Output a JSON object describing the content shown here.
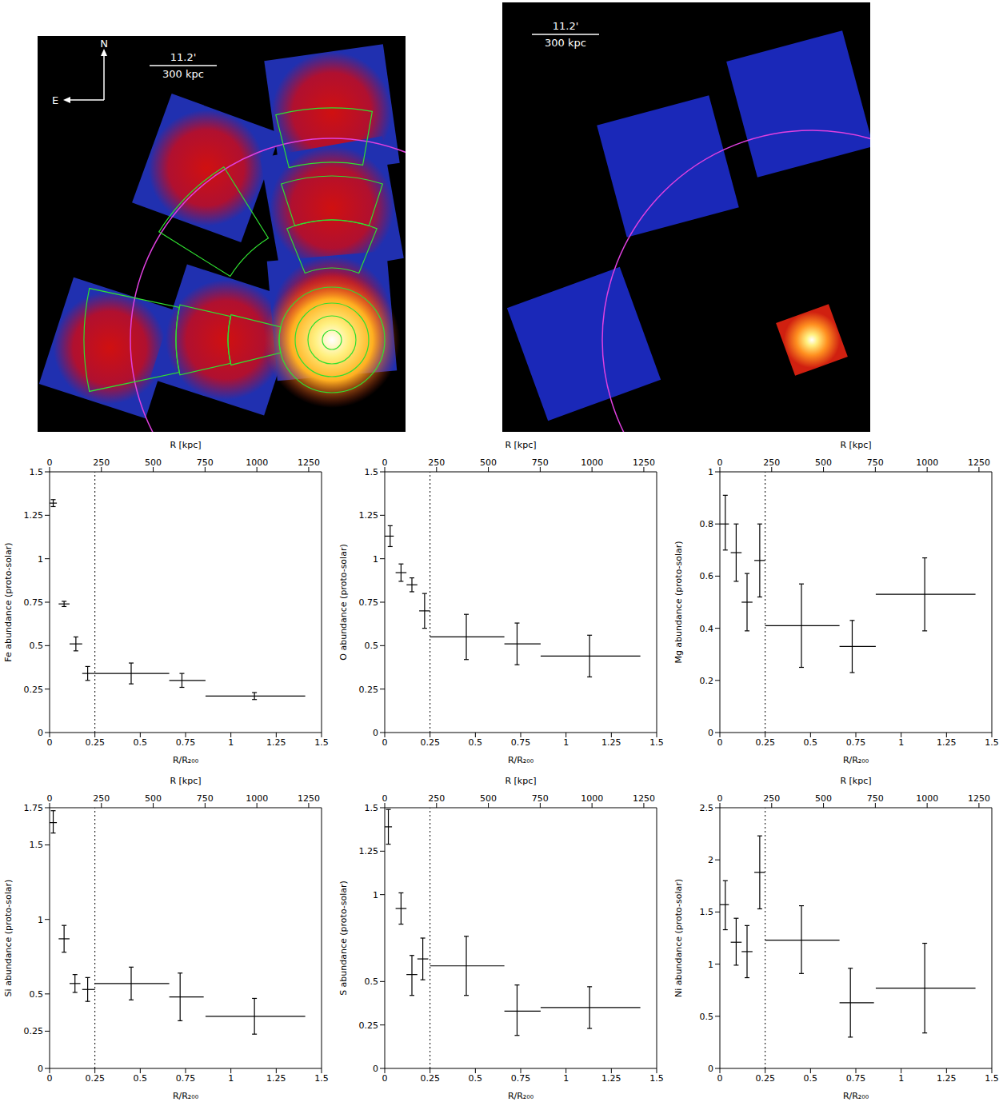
{
  "images": [
    {
      "scale_angle": "11.2'",
      "scale_length": "300 kpc",
      "compass": [
        "N",
        "E"
      ]
    },
    {
      "scale_angle": "11.2'",
      "scale_length": "300 kpc"
    }
  ],
  "chart_data": [
    {
      "type": "scatter",
      "y_label": "Fe abundance (proto-solar)",
      "x_label": "R/R₂₀₀",
      "x2_label": "R [kpc]",
      "xlim": [
        0,
        1.5
      ],
      "xticks": [
        0,
        0.25,
        0.5,
        0.75,
        1,
        1.25,
        1.5
      ],
      "x2lim": [
        0,
        1312
      ],
      "x2ticks": [
        0,
        250,
        500,
        750,
        1000,
        1250
      ],
      "ylim": [
        0,
        1.5
      ],
      "yticks": [
        0,
        0.25,
        0.5,
        0.75,
        1,
        1.25,
        1.5
      ],
      "reference_line_x": 0.25,
      "color": "#000000",
      "marker": "none",
      "x": [
        0.02,
        0.08,
        0.145,
        0.21,
        0.45,
        0.73,
        1.13
      ],
      "x_err": [
        [
          0.02,
          0.02
        ],
        [
          0.03,
          0.03
        ],
        [
          0.035,
          0.035
        ],
        [
          0.03,
          0.04
        ],
        [
          0.2,
          0.21
        ],
        [
          0.07,
          0.13
        ],
        [
          0.27,
          0.28
        ]
      ],
      "values": [
        1.32,
        0.74,
        0.51,
        0.34,
        0.34,
        0.3,
        0.21
      ],
      "y_err": [
        [
          0.02,
          0.02
        ],
        [
          0.015,
          0.015
        ],
        [
          0.04,
          0.04
        ],
        [
          0.04,
          0.04
        ],
        [
          0.06,
          0.06
        ],
        [
          0.04,
          0.04
        ],
        [
          0.02,
          0.02
        ]
      ]
    },
    {
      "type": "scatter",
      "y_label": "O abundance (proto-solar)",
      "x_label": "R/R₂₀₀",
      "x2_label": "R [kpc]",
      "xlim": [
        0,
        1.5
      ],
      "xticks": [
        0,
        0.25,
        0.5,
        0.75,
        1,
        1.25,
        1.5
      ],
      "x2lim": [
        0,
        1312
      ],
      "x2ticks": [
        0,
        250,
        500,
        750,
        1000,
        1250
      ],
      "ylim": [
        0,
        1.5
      ],
      "yticks": [
        0,
        0.25,
        0.5,
        0.75,
        1,
        1.25,
        1.5
      ],
      "reference_line_x": 0.25,
      "color": "#000000",
      "marker": "none",
      "x": [
        0.03,
        0.09,
        0.15,
        0.22,
        0.45,
        0.73,
        1.13
      ],
      "x_err": [
        [
          0.03,
          0.02
        ],
        [
          0.03,
          0.03
        ],
        [
          0.03,
          0.03
        ],
        [
          0.03,
          0.03
        ],
        [
          0.2,
          0.21
        ],
        [
          0.07,
          0.13
        ],
        [
          0.27,
          0.28
        ]
      ],
      "values": [
        1.13,
        0.92,
        0.85,
        0.7,
        0.55,
        0.51,
        0.44
      ],
      "y_err": [
        [
          0.06,
          0.06
        ],
        [
          0.05,
          0.05
        ],
        [
          0.04,
          0.04
        ],
        [
          0.1,
          0.1
        ],
        [
          0.13,
          0.13
        ],
        [
          0.12,
          0.12
        ],
        [
          0.12,
          0.12
        ]
      ]
    },
    {
      "type": "scatter",
      "y_label": "Mg abundance (proto-solar)",
      "x_label": "R/R₂₀₀",
      "x2_label": "R [kpc]",
      "xlim": [
        0,
        1.5
      ],
      "xticks": [
        0,
        0.25,
        0.5,
        0.75,
        1,
        1.25,
        1.5
      ],
      "x2lim": [
        0,
        1312
      ],
      "x2ticks": [
        0,
        250,
        500,
        750,
        1000,
        1250
      ],
      "ylim": [
        0,
        1
      ],
      "yticks": [
        0,
        0.2,
        0.4,
        0.6,
        0.8,
        1
      ],
      "reference_line_x": 0.25,
      "color": "#000000",
      "marker": "none",
      "x": [
        0.03,
        0.09,
        0.15,
        0.22,
        0.45,
        0.73,
        1.13
      ],
      "x_err": [
        [
          0.03,
          0.02
        ],
        [
          0.03,
          0.03
        ],
        [
          0.03,
          0.03
        ],
        [
          0.03,
          0.03
        ],
        [
          0.2,
          0.21
        ],
        [
          0.07,
          0.13
        ],
        [
          0.27,
          0.28
        ]
      ],
      "values": [
        0.8,
        0.69,
        0.5,
        0.66,
        0.41,
        0.33,
        0.53
      ],
      "y_err": [
        [
          0.1,
          0.11
        ],
        [
          0.11,
          0.11
        ],
        [
          0.11,
          0.11
        ],
        [
          0.14,
          0.14
        ],
        [
          0.16,
          0.16
        ],
        [
          0.1,
          0.1
        ],
        [
          0.14,
          0.14
        ]
      ]
    },
    {
      "type": "scatter",
      "y_label": "Si abundance (proto-solar)",
      "x_label": "R/R₂₀₀",
      "x2_label": "R [kpc]",
      "xlim": [
        0,
        1.5
      ],
      "xticks": [
        0,
        0.25,
        0.5,
        0.75,
        1,
        1.25,
        1.5
      ],
      "x2lim": [
        0,
        1312
      ],
      "x2ticks": [
        0,
        250,
        500,
        750,
        1000,
        1250
      ],
      "ylim": [
        0,
        1.75
      ],
      "yticks": [
        0,
        0.25,
        0.5,
        1,
        1.5,
        1.75
      ],
      "reference_line_x": 0.25,
      "color": "#000000",
      "marker": "none",
      "x": [
        0.02,
        0.08,
        0.14,
        0.21,
        0.45,
        0.72,
        1.13
      ],
      "x_err": [
        [
          0.02,
          0.02
        ],
        [
          0.03,
          0.03
        ],
        [
          0.03,
          0.03
        ],
        [
          0.03,
          0.04
        ],
        [
          0.2,
          0.21
        ],
        [
          0.06,
          0.13
        ],
        [
          0.27,
          0.28
        ]
      ],
      "values": [
        1.65,
        0.87,
        0.57,
        0.53,
        0.57,
        0.48,
        0.35
      ],
      "y_err": [
        [
          0.07,
          0.08
        ],
        [
          0.09,
          0.09
        ],
        [
          0.06,
          0.06
        ],
        [
          0.08,
          0.08
        ],
        [
          0.11,
          0.11
        ],
        [
          0.16,
          0.16
        ],
        [
          0.12,
          0.12
        ]
      ]
    },
    {
      "type": "scatter",
      "y_label": "S abundance (proto-solar)",
      "x_label": "R/R₂₀₀",
      "x2_label": "R [kpc]",
      "xlim": [
        0,
        1.5
      ],
      "xticks": [
        0,
        0.25,
        0.5,
        0.75,
        1,
        1.25,
        1.5
      ],
      "x2lim": [
        0,
        1312
      ],
      "x2ticks": [
        0,
        250,
        500,
        750,
        1000,
        1250
      ],
      "ylim": [
        0,
        1.5
      ],
      "yticks": [
        0,
        0.25,
        0.5,
        1,
        1.25,
        1.5
      ],
      "reference_line_x": 0.25,
      "color": "#000000",
      "marker": "none",
      "x": [
        0.02,
        0.09,
        0.15,
        0.21,
        0.45,
        0.73,
        1.13
      ],
      "x_err": [
        [
          0.02,
          0.02
        ],
        [
          0.03,
          0.03
        ],
        [
          0.03,
          0.03
        ],
        [
          0.03,
          0.03
        ],
        [
          0.2,
          0.21
        ],
        [
          0.07,
          0.13
        ],
        [
          0.27,
          0.28
        ]
      ],
      "values": [
        1.39,
        0.92,
        0.54,
        0.63,
        0.59,
        0.33,
        0.35
      ],
      "y_err": [
        [
          0.1,
          0.1
        ],
        [
          0.09,
          0.09
        ],
        [
          0.12,
          0.11
        ],
        [
          0.12,
          0.12
        ],
        [
          0.17,
          0.17
        ],
        [
          0.14,
          0.15
        ],
        [
          0.12,
          0.12
        ]
      ]
    },
    {
      "type": "scatter",
      "y_label": "Ni abundance (proto-solar)",
      "x_label": "R/R₂₀₀",
      "x2_label": "R [kpc]",
      "xlim": [
        0,
        1.5
      ],
      "xticks": [
        0,
        0.25,
        0.5,
        0.75,
        1,
        1.25,
        1.5
      ],
      "x2lim": [
        0,
        1312
      ],
      "x2ticks": [
        0,
        250,
        500,
        750,
        1000,
        1250
      ],
      "ylim": [
        0,
        2.5
      ],
      "yticks": [
        0,
        0.5,
        1,
        1.5,
        2,
        2.5
      ],
      "reference_line_x": 0.25,
      "color": "#000000",
      "marker": "none",
      "x": [
        0.03,
        0.09,
        0.15,
        0.22,
        0.45,
        0.72,
        1.13
      ],
      "x_err": [
        [
          0.03,
          0.02
        ],
        [
          0.03,
          0.03
        ],
        [
          0.03,
          0.03
        ],
        [
          0.03,
          0.03
        ],
        [
          0.2,
          0.21
        ],
        [
          0.06,
          0.13
        ],
        [
          0.27,
          0.28
        ]
      ],
      "values": [
        1.57,
        1.21,
        1.12,
        1.88,
        1.23,
        0.63,
        0.77
      ],
      "y_err": [
        [
          0.24,
          0.23
        ],
        [
          0.22,
          0.23
        ],
        [
          0.25,
          0.25
        ],
        [
          0.35,
          0.35
        ],
        [
          0.32,
          0.33
        ],
        [
          0.33,
          0.33
        ],
        [
          0.43,
          0.43
        ]
      ]
    }
  ]
}
